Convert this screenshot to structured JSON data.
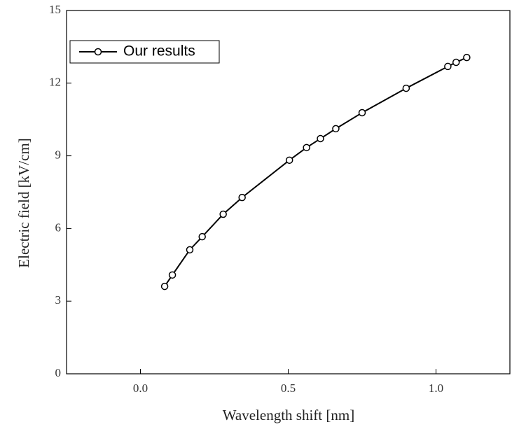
{
  "chart_data": {
    "type": "line",
    "xlabel": "Wavelength shift [nm]",
    "ylabel": "Electric field [kV/cm]",
    "xlim": [
      -0.25,
      1.25
    ],
    "xticks": [
      {
        "value": 0,
        "label": "0.0"
      },
      {
        "value": 0.5,
        "label": "0.5"
      },
      {
        "value": 1,
        "label": "1.0"
      }
    ],
    "ylim": [
      0,
      15
    ],
    "yticks": [
      0,
      3,
      6,
      9,
      12,
      15
    ],
    "legend": "upper left",
    "series": [
      {
        "name": "Our results",
        "color": "#000000",
        "x": [
          0.082,
          0.108,
          0.167,
          0.209,
          0.28,
          0.344,
          0.504,
          0.562,
          0.609,
          0.661,
          0.75,
          0.899,
          1.04,
          1.068,
          1.104
        ],
        "values": [
          3.61,
          4.08,
          5.12,
          5.66,
          6.59,
          7.28,
          8.82,
          9.34,
          9.71,
          10.12,
          10.78,
          11.79,
          12.69,
          12.86,
          13.06
        ]
      }
    ]
  }
}
